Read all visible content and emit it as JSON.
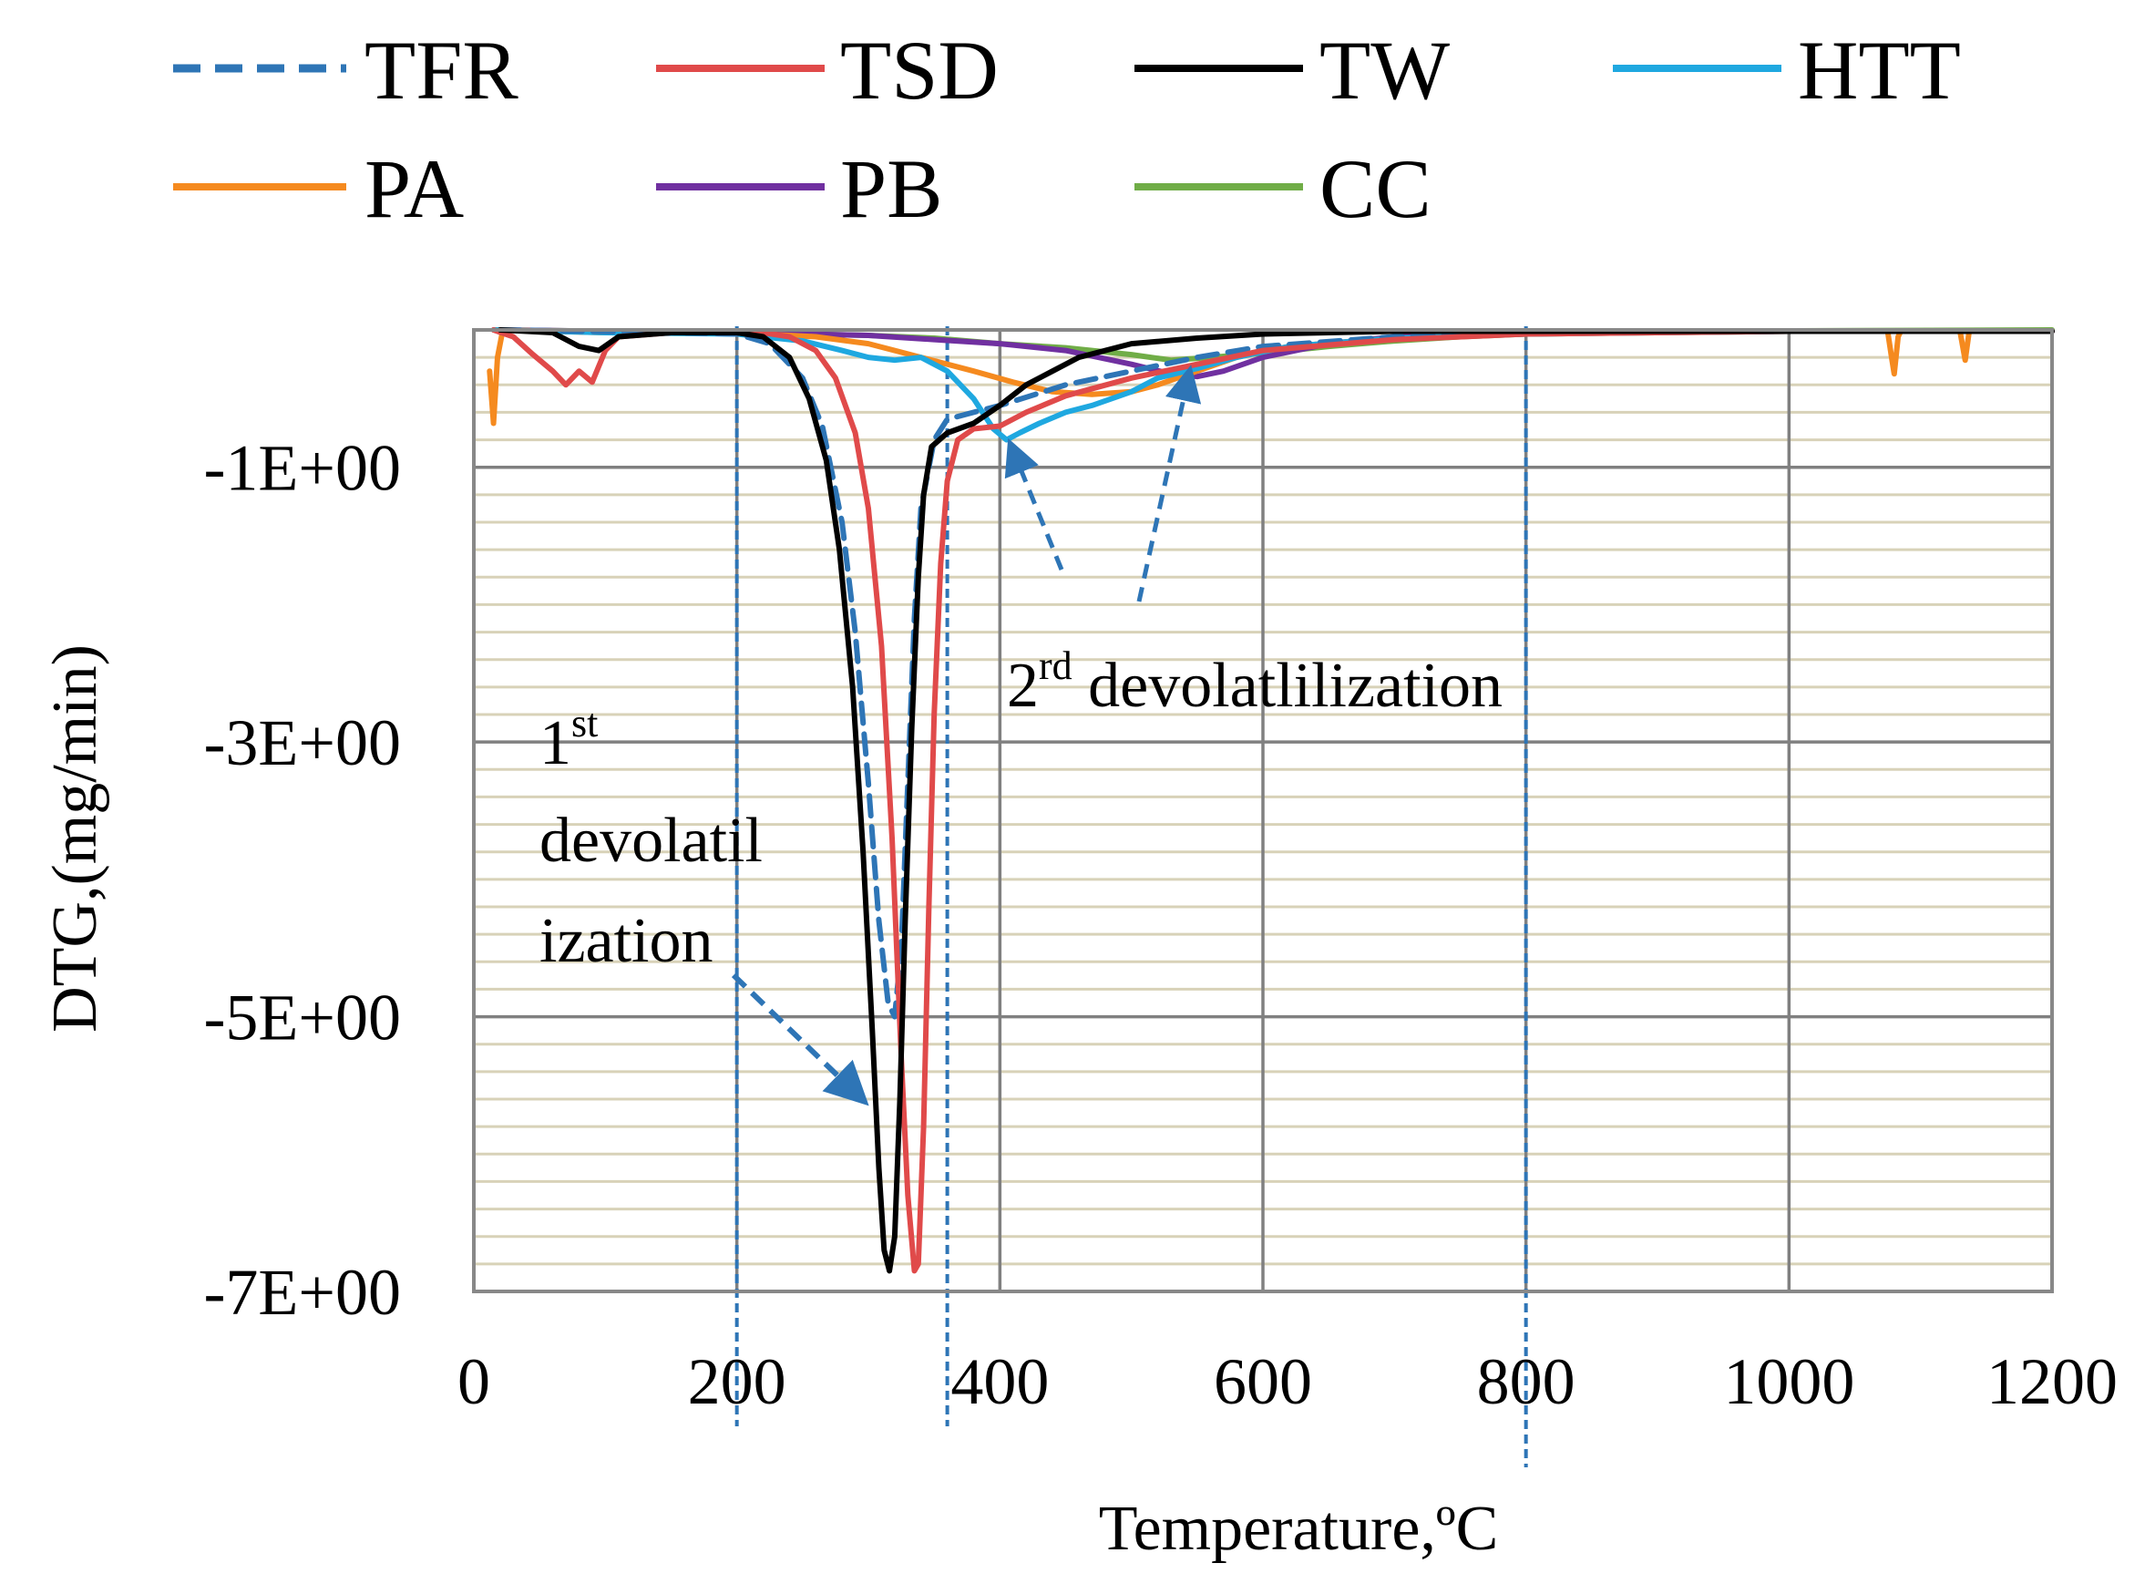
{
  "chart_data": {
    "type": "line",
    "title": "",
    "xlabel": "Temperature,ºC",
    "ylabel": "DTG,(mg/min)",
    "xlim": [
      0,
      1200
    ],
    "ylim": [
      -7,
      0
    ],
    "x_ticks": [
      0,
      200,
      400,
      600,
      800,
      1000,
      1200
    ],
    "x_tick_labels": [
      "0",
      "200",
      "400",
      "600",
      "800",
      "1000",
      "1200"
    ],
    "y_ticks": [
      -1,
      -3,
      -5,
      -7
    ],
    "y_tick_labels": [
      "-1E+00",
      "-3E+00",
      "-5E+00",
      "-7E+00"
    ],
    "minor_y_step": 0.2,
    "legend_position": "top",
    "series": [
      {
        "name": "TFR",
        "color": "#2E75B6",
        "dashed": true,
        "points": [
          [
            20,
            0
          ],
          [
            150,
            -0.02
          ],
          [
            200,
            -0.03
          ],
          [
            225,
            -0.1
          ],
          [
            250,
            -0.35
          ],
          [
            265,
            -0.7
          ],
          [
            280,
            -1.4
          ],
          [
            290,
            -2.2
          ],
          [
            300,
            -3.3
          ],
          [
            308,
            -4.3
          ],
          [
            315,
            -4.9
          ],
          [
            320,
            -5.0
          ],
          [
            325,
            -4.5
          ],
          [
            330,
            -3.3
          ],
          [
            335,
            -2.1
          ],
          [
            340,
            -1.3
          ],
          [
            350,
            -0.8
          ],
          [
            360,
            -0.65
          ],
          [
            400,
            -0.55
          ],
          [
            450,
            -0.4
          ],
          [
            500,
            -0.3
          ],
          [
            550,
            -0.2
          ],
          [
            600,
            -0.12
          ],
          [
            700,
            -0.05
          ],
          [
            800,
            -0.02
          ],
          [
            1000,
            -0.01
          ],
          [
            1200,
            -0.01
          ]
        ]
      },
      {
        "name": "TSD",
        "color": "#E04A4A",
        "dashed": false,
        "points": [
          [
            15,
            0
          ],
          [
            30,
            -0.05
          ],
          [
            45,
            -0.18
          ],
          [
            60,
            -0.3
          ],
          [
            70,
            -0.4
          ],
          [
            80,
            -0.3
          ],
          [
            90,
            -0.38
          ],
          [
            100,
            -0.15
          ],
          [
            110,
            -0.05
          ],
          [
            150,
            -0.02
          ],
          [
            220,
            -0.02
          ],
          [
            240,
            -0.05
          ],
          [
            260,
            -0.15
          ],
          [
            275,
            -0.35
          ],
          [
            290,
            -0.75
          ],
          [
            300,
            -1.3
          ],
          [
            310,
            -2.3
          ],
          [
            318,
            -3.7
          ],
          [
            325,
            -5.3
          ],
          [
            330,
            -6.3
          ],
          [
            335,
            -6.85
          ],
          [
            338,
            -6.8
          ],
          [
            342,
            -5.8
          ],
          [
            346,
            -4.2
          ],
          [
            350,
            -2.8
          ],
          [
            355,
            -1.7
          ],
          [
            360,
            -1.1
          ],
          [
            368,
            -0.8
          ],
          [
            380,
            -0.72
          ],
          [
            400,
            -0.7
          ],
          [
            420,
            -0.6
          ],
          [
            450,
            -0.48
          ],
          [
            500,
            -0.35
          ],
          [
            550,
            -0.25
          ],
          [
            600,
            -0.15
          ],
          [
            700,
            -0.07
          ],
          [
            800,
            -0.03
          ],
          [
            1000,
            -0.01
          ],
          [
            1200,
            -0.01
          ]
        ]
      },
      {
        "name": "TW",
        "color": "#000000",
        "dashed": false,
        "points": [
          [
            20,
            0
          ],
          [
            60,
            -0.02
          ],
          [
            80,
            -0.12
          ],
          [
            95,
            -0.15
          ],
          [
            110,
            -0.05
          ],
          [
            150,
            -0.02
          ],
          [
            200,
            -0.02
          ],
          [
            220,
            -0.05
          ],
          [
            240,
            -0.2
          ],
          [
            255,
            -0.5
          ],
          [
            268,
            -0.95
          ],
          [
            278,
            -1.6
          ],
          [
            288,
            -2.6
          ],
          [
            296,
            -3.8
          ],
          [
            303,
            -5.1
          ],
          [
            308,
            -6.1
          ],
          [
            312,
            -6.7
          ],
          [
            316,
            -6.85
          ],
          [
            320,
            -6.6
          ],
          [
            324,
            -5.6
          ],
          [
            328,
            -4.3
          ],
          [
            333,
            -2.9
          ],
          [
            338,
            -1.8
          ],
          [
            342,
            -1.2
          ],
          [
            348,
            -0.85
          ],
          [
            360,
            -0.75
          ],
          [
            380,
            -0.68
          ],
          [
            400,
            -0.55
          ],
          [
            420,
            -0.4
          ],
          [
            440,
            -0.3
          ],
          [
            460,
            -0.2
          ],
          [
            480,
            -0.15
          ],
          [
            500,
            -0.1
          ],
          [
            550,
            -0.06
          ],
          [
            600,
            -0.03
          ],
          [
            700,
            -0.01
          ],
          [
            1000,
            -0.01
          ],
          [
            1200,
            -0.01
          ]
        ]
      },
      {
        "name": "HTT",
        "color": "#1FA8E0",
        "dashed": false,
        "points": [
          [
            15,
            0
          ],
          [
            100,
            -0.02
          ],
          [
            200,
            -0.03
          ],
          [
            250,
            -0.08
          ],
          [
            280,
            -0.15
          ],
          [
            300,
            -0.2
          ],
          [
            320,
            -0.22
          ],
          [
            340,
            -0.2
          ],
          [
            360,
            -0.3
          ],
          [
            380,
            -0.5
          ],
          [
            395,
            -0.72
          ],
          [
            405,
            -0.8
          ],
          [
            415,
            -0.75
          ],
          [
            430,
            -0.68
          ],
          [
            450,
            -0.6
          ],
          [
            470,
            -0.55
          ],
          [
            500,
            -0.45
          ],
          [
            520,
            -0.35
          ],
          [
            550,
            -0.28
          ],
          [
            580,
            -0.2
          ],
          [
            620,
            -0.12
          ],
          [
            700,
            -0.06
          ],
          [
            800,
            -0.03
          ],
          [
            1000,
            -0.01
          ],
          [
            1200,
            -0.01
          ]
        ]
      },
      {
        "name": "PA",
        "color": "#F58A1F",
        "dashed": false,
        "points": [
          [
            12,
            -0.3
          ],
          [
            15,
            -0.68
          ],
          [
            18,
            -0.2
          ],
          [
            22,
            0
          ],
          [
            100,
            -0.02
          ],
          [
            200,
            -0.02
          ],
          [
            260,
            -0.05
          ],
          [
            300,
            -0.1
          ],
          [
            340,
            -0.2
          ],
          [
            380,
            -0.3
          ],
          [
            410,
            -0.38
          ],
          [
            440,
            -0.45
          ],
          [
            470,
            -0.47
          ],
          [
            500,
            -0.45
          ],
          [
            520,
            -0.4
          ],
          [
            550,
            -0.3
          ],
          [
            580,
            -0.2
          ],
          [
            620,
            -0.12
          ],
          [
            700,
            -0.06
          ],
          [
            800,
            -0.03
          ],
          [
            1000,
            -0.01
          ],
          [
            1075,
            -0.01
          ],
          [
            1078,
            -0.2
          ],
          [
            1080,
            -0.32
          ],
          [
            1083,
            -0.05
          ],
          [
            1085,
            -0.01
          ],
          [
            1130,
            -0.01
          ],
          [
            1134,
            -0.22
          ],
          [
            1137,
            -0.01
          ],
          [
            1200,
            -0.01
          ]
        ]
      },
      {
        "name": "PB",
        "color": "#7030A0",
        "dashed": false,
        "points": [
          [
            20,
            0
          ],
          [
            100,
            -0.01
          ],
          [
            200,
            -0.02
          ],
          [
            300,
            -0.04
          ],
          [
            350,
            -0.07
          ],
          [
            400,
            -0.1
          ],
          [
            450,
            -0.15
          ],
          [
            500,
            -0.25
          ],
          [
            530,
            -0.32
          ],
          [
            550,
            -0.34
          ],
          [
            570,
            -0.3
          ],
          [
            600,
            -0.2
          ],
          [
            650,
            -0.1
          ],
          [
            700,
            -0.05
          ],
          [
            800,
            -0.02
          ],
          [
            1000,
            -0.01
          ],
          [
            1200,
            -0.01
          ]
        ]
      },
      {
        "name": "CC",
        "color": "#70AD47",
        "dashed": false,
        "points": [
          [
            15,
            0
          ],
          [
            100,
            -0.01
          ],
          [
            200,
            -0.02
          ],
          [
            300,
            -0.04
          ],
          [
            350,
            -0.06
          ],
          [
            400,
            -0.1
          ],
          [
            450,
            -0.13
          ],
          [
            500,
            -0.18
          ],
          [
            530,
            -0.22
          ],
          [
            560,
            -0.2
          ],
          [
            600,
            -0.17
          ],
          [
            650,
            -0.12
          ],
          [
            700,
            -0.08
          ],
          [
            750,
            -0.05
          ],
          [
            800,
            -0.03
          ],
          [
            900,
            -0.01
          ],
          [
            1200,
            0
          ]
        ]
      }
    ],
    "annotations": {
      "first": {
        "main": "1",
        "sup": "st",
        "line2": "devolatil",
        "line3": "ization"
      },
      "second": {
        "main": "2",
        "sup": "rd",
        "rest": " devolatlilization"
      }
    },
    "guide_lines_x": [
      200,
      360,
      800
    ]
  }
}
